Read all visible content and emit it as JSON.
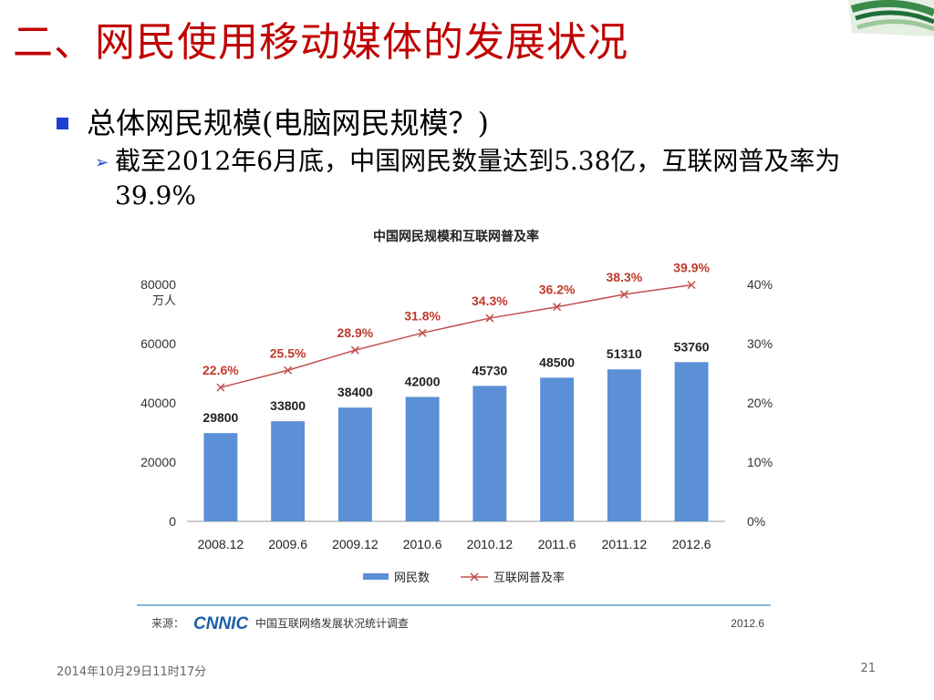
{
  "slide": {
    "title": "二、网民使用移动媒体的发展状况",
    "bullet": "总体网民规模(电脑网民规模？)",
    "subbullet": "截至2012年6月底，中国网民数量达到5.38亿，互联网普及率为39.9%",
    "date": "2014年10月29日11时17分",
    "page": "21"
  },
  "chart_data": {
    "type": "bar",
    "title": "中国网民规模和互联网普及率",
    "categories": [
      "2008.12",
      "2009.6",
      "2009.12",
      "2010.6",
      "2010.12",
      "2011.6",
      "2011.12",
      "2012.6"
    ],
    "series": [
      {
        "name": "网民数",
        "type": "bar",
        "axis": "left",
        "values": [
          29800,
          33800,
          38400,
          42000,
          45730,
          48500,
          51310,
          53760
        ],
        "labels": [
          "29800",
          "33800",
          "38400",
          "42000",
          "45730",
          "48500",
          "51310",
          "53760"
        ]
      },
      {
        "name": "互联网普及率",
        "type": "line",
        "axis": "right",
        "values": [
          22.6,
          25.5,
          28.9,
          31.8,
          34.3,
          36.2,
          38.3,
          39.9
        ],
        "labels": [
          "22.6%",
          "25.5%",
          "28.9%",
          "31.8%",
          "34.3%",
          "36.2%",
          "38.3%",
          "39.9%"
        ]
      }
    ],
    "left_axis": {
      "unit": "万人",
      "ylim": [
        0,
        80000
      ],
      "ticks": [
        "0",
        "20000",
        "40000",
        "60000",
        "80000"
      ]
    },
    "right_axis": {
      "ylim": [
        0,
        40
      ],
      "ticks": [
        "0%",
        "10%",
        "20%",
        "30%",
        "40%"
      ]
    },
    "source_label": "来源：",
    "source_logo": "CNNIC",
    "source_text": "中国互联网络发展状况统计调查",
    "source_date": "2012.6",
    "legend_position": "bottom",
    "grid": false,
    "colors": {
      "bar": "#5b8fd6",
      "line": "#c0504d",
      "label_red": "#c0392b"
    }
  }
}
